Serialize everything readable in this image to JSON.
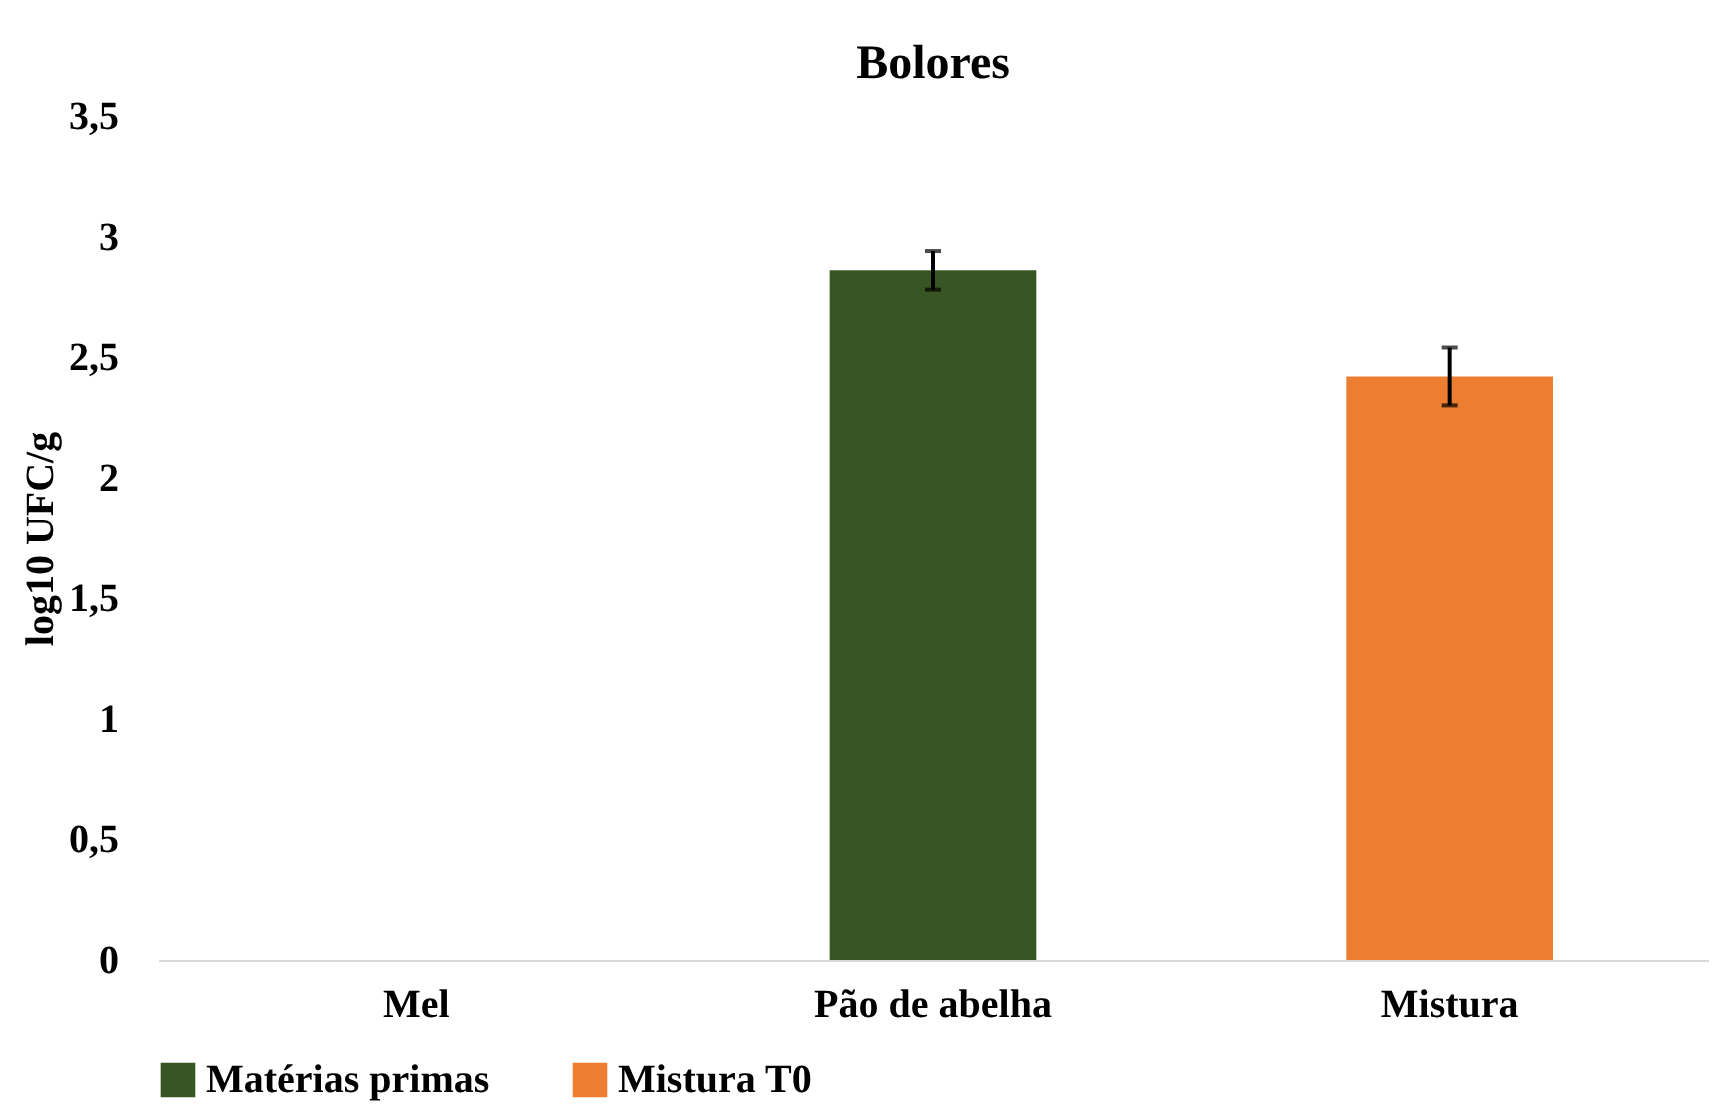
{
  "chart_data": {
    "type": "bar",
    "title": "Bolores",
    "ylabel": "log10 UFC/g",
    "categories": [
      "Mel",
      "Pão de abelha",
      "Mistura"
    ],
    "series": [
      {
        "name": "Matérias primas",
        "color": "#375623",
        "values": [
          0,
          2.86,
          null
        ],
        "errors": [
          null,
          0.08,
          null
        ]
      },
      {
        "name": "Mistura T0",
        "color": "#ed7d31",
        "values": [
          null,
          null,
          2.42
        ],
        "errors": [
          null,
          null,
          0.12
        ]
      }
    ],
    "ylim": [
      0,
      3.5
    ],
    "yticks": [
      0,
      {
        "value": 0.5,
        "label": "0,5"
      },
      1,
      {
        "value": 1.5,
        "label": "1,5"
      },
      2,
      {
        "value": 2.5,
        "label": "2,5"
      },
      3,
      {
        "value": 3.5,
        "label": "3,5"
      }
    ],
    "grid": false,
    "legend": "bottom"
  }
}
